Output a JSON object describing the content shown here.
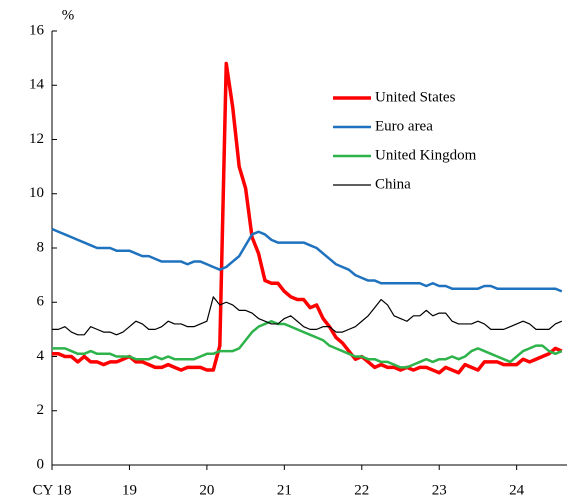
{
  "chart_data": {
    "type": "line",
    "ylabel": "%",
    "x": [
      18,
      18.083,
      18.167,
      18.25,
      18.333,
      18.417,
      18.5,
      18.583,
      18.667,
      18.75,
      18.833,
      18.917,
      19,
      19.083,
      19.167,
      19.25,
      19.333,
      19.417,
      19.5,
      19.583,
      19.667,
      19.75,
      19.833,
      19.917,
      20,
      20.083,
      20.167,
      20.25,
      20.333,
      20.417,
      20.5,
      20.583,
      20.667,
      20.75,
      20.833,
      20.917,
      21,
      21.083,
      21.167,
      21.25,
      21.333,
      21.417,
      21.5,
      21.583,
      21.667,
      21.75,
      21.833,
      21.917,
      22,
      22.083,
      22.167,
      22.25,
      22.333,
      22.417,
      22.5,
      22.583,
      22.667,
      22.75,
      22.833,
      22.917,
      23,
      23.083,
      23.167,
      23.25,
      23.333,
      23.417,
      23.5,
      23.583,
      23.667,
      23.75,
      23.833,
      23.917,
      24,
      24.083,
      24.167,
      24.25,
      24.333,
      24.417,
      24.5,
      24.583
    ],
    "series": [
      {
        "name": "United States",
        "color": "#ff0000",
        "width": 3.5,
        "values": [
          4.1,
          4.1,
          4.0,
          4.0,
          3.8,
          4.0,
          3.8,
          3.8,
          3.7,
          3.8,
          3.8,
          3.9,
          4.0,
          3.8,
          3.8,
          3.7,
          3.6,
          3.6,
          3.7,
          3.6,
          3.5,
          3.6,
          3.6,
          3.6,
          3.5,
          3.5,
          4.4,
          14.8,
          13.2,
          11.0,
          10.2,
          8.4,
          7.8,
          6.8,
          6.7,
          6.7,
          6.4,
          6.2,
          6.1,
          6.1,
          5.8,
          5.9,
          5.4,
          5.1,
          4.7,
          4.5,
          4.2,
          3.9,
          4.0,
          3.8,
          3.6,
          3.7,
          3.6,
          3.6,
          3.5,
          3.6,
          3.5,
          3.6,
          3.6,
          3.5,
          3.4,
          3.6,
          3.5,
          3.4,
          3.7,
          3.6,
          3.5,
          3.8,
          3.8,
          3.8,
          3.7,
          3.7,
          3.7,
          3.9,
          3.8,
          3.9,
          4.0,
          4.1,
          4.3,
          4.2
        ]
      },
      {
        "name": "Euro area",
        "color": "#1f72bd",
        "width": 2.5,
        "values": [
          8.7,
          8.6,
          8.5,
          8.4,
          8.3,
          8.2,
          8.1,
          8.0,
          8.0,
          8.0,
          7.9,
          7.9,
          7.9,
          7.8,
          7.7,
          7.7,
          7.6,
          7.5,
          7.5,
          7.5,
          7.5,
          7.4,
          7.5,
          7.5,
          7.4,
          7.3,
          7.2,
          7.3,
          7.5,
          7.7,
          8.1,
          8.5,
          8.6,
          8.5,
          8.3,
          8.2,
          8.2,
          8.2,
          8.2,
          8.2,
          8.1,
          8.0,
          7.8,
          7.6,
          7.4,
          7.3,
          7.2,
          7.0,
          6.9,
          6.8,
          6.8,
          6.7,
          6.7,
          6.7,
          6.7,
          6.7,
          6.7,
          6.7,
          6.6,
          6.7,
          6.6,
          6.6,
          6.5,
          6.5,
          6.5,
          6.5,
          6.5,
          6.6,
          6.6,
          6.5,
          6.5,
          6.5,
          6.5,
          6.5,
          6.5,
          6.5,
          6.5,
          6.5,
          6.5,
          6.4
        ]
      },
      {
        "name": "United Kingdom",
        "color": "#2db34a",
        "width": 2.5,
        "values": [
          4.3,
          4.3,
          4.3,
          4.2,
          4.1,
          4.1,
          4.2,
          4.1,
          4.1,
          4.1,
          4.0,
          4.0,
          4.0,
          3.9,
          3.9,
          3.9,
          4.0,
          3.9,
          4.0,
          3.9,
          3.9,
          3.9,
          3.9,
          4.0,
          4.1,
          4.1,
          4.2,
          4.2,
          4.2,
          4.3,
          4.6,
          4.9,
          5.1,
          5.2,
          5.3,
          5.2,
          5.2,
          5.1,
          5.0,
          4.9,
          4.8,
          4.7,
          4.6,
          4.4,
          4.3,
          4.2,
          4.1,
          4.0,
          4.0,
          3.9,
          3.9,
          3.8,
          3.8,
          3.7,
          3.6,
          3.6,
          3.7,
          3.8,
          3.9,
          3.8,
          3.9,
          3.9,
          4.0,
          3.9,
          4.0,
          4.2,
          4.3,
          4.2,
          4.1,
          4.0,
          3.9,
          3.8,
          4.0,
          4.2,
          4.3,
          4.4,
          4.4,
          4.2,
          4.1,
          4.2
        ]
      },
      {
        "name": "China",
        "color": "#000000",
        "width": 1.2,
        "values": [
          5.0,
          5.0,
          5.1,
          4.9,
          4.8,
          4.8,
          5.1,
          5.0,
          4.9,
          4.9,
          4.8,
          4.9,
          5.1,
          5.3,
          5.2,
          5.0,
          5.0,
          5.1,
          5.3,
          5.2,
          5.2,
          5.1,
          5.1,
          5.2,
          5.3,
          6.2,
          5.9,
          6.0,
          5.9,
          5.7,
          5.7,
          5.6,
          5.4,
          5.3,
          5.2,
          5.2,
          5.4,
          5.5,
          5.3,
          5.1,
          5.0,
          5.0,
          5.1,
          5.1,
          4.9,
          4.9,
          5.0,
          5.1,
          5.3,
          5.5,
          5.8,
          6.1,
          5.9,
          5.5,
          5.4,
          5.3,
          5.5,
          5.5,
          5.7,
          5.5,
          5.6,
          5.6,
          5.3,
          5.2,
          5.2,
          5.2,
          5.3,
          5.2,
          5.0,
          5.0,
          5.0,
          5.1,
          5.2,
          5.3,
          5.2,
          5.0,
          5.0,
          5.0,
          5.2,
          5.3
        ]
      }
    ],
    "xlim": [
      18,
      24.65
    ],
    "xticks": [
      {
        "value": 18,
        "label": "CY 18"
      },
      19,
      20,
      21,
      22,
      23,
      24
    ],
    "ylim": [
      0,
      16
    ],
    "yticks": [
      0,
      2,
      4,
      6,
      8,
      10,
      12,
      14,
      16
    ],
    "grid": false,
    "legend": "upper right"
  }
}
